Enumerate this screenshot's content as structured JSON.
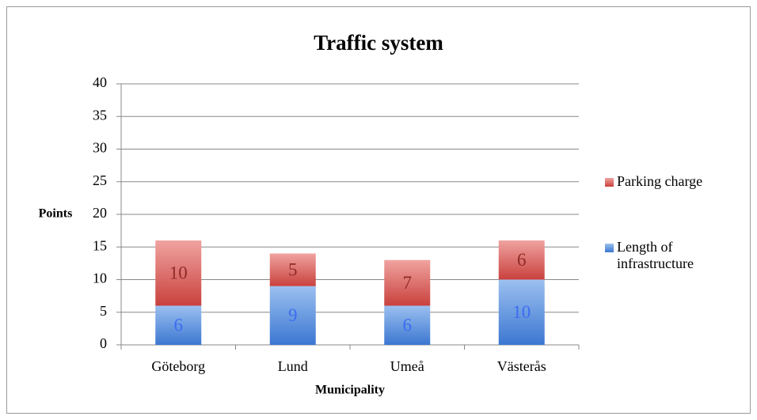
{
  "chart_data": {
    "type": "stacked_bar",
    "title": "Traffic system",
    "x_label": "Municipality",
    "y_label": "Points",
    "categories": [
      "Göteborg",
      "Lund",
      "Umeå",
      "Västerås"
    ],
    "series": [
      {
        "name": "Length of infrastructure",
        "color": "#4f81d6",
        "label_color": "#3d6cf0",
        "values": [
          6,
          9,
          6,
          10
        ]
      },
      {
        "name": "Parking charge",
        "color": "#d9534f",
        "label_color": "#8e2b28",
        "values": [
          10,
          5,
          7,
          6
        ]
      }
    ],
    "ylim": [
      0,
      40
    ],
    "yticks": [
      0,
      5,
      10,
      15,
      20,
      25,
      30,
      35,
      40
    ],
    "grid": true,
    "legend": "right"
  }
}
